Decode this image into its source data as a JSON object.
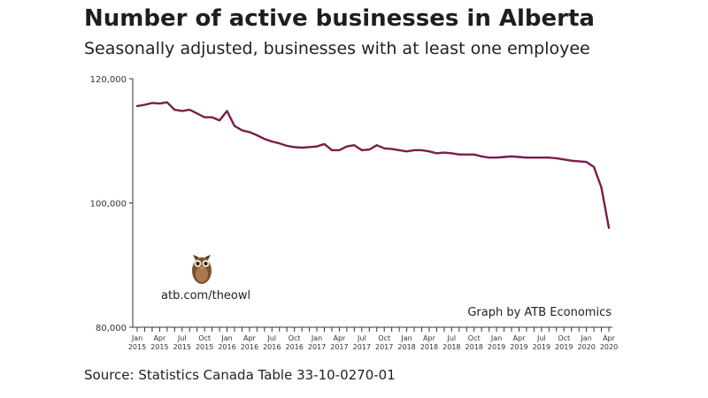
{
  "chart_data": {
    "type": "line",
    "title": "Number of active businesses in Alberta",
    "subtitle": "Seasonally adjusted, businesses with at least one employee",
    "source": "Source: Statistics Canada Table 33-10-0270-01",
    "credit": "Graph by ATB Economics",
    "watermark": "atb.com/theowl",
    "logo_icon": "owl-icon",
    "line_color": "#7a1d4a",
    "ylim": [
      80000,
      120000
    ],
    "yticks": [
      {
        "value": 120000,
        "label": "120,000"
      },
      {
        "value": 100000,
        "label": "100,000"
      },
      {
        "value": 80000,
        "label": "80,000"
      }
    ],
    "xticks": [
      {
        "index": 0,
        "month": "Jan",
        "year": "2015"
      },
      {
        "index": 3,
        "month": "Apr",
        "year": "2015"
      },
      {
        "index": 6,
        "month": "Jul",
        "year": "2015"
      },
      {
        "index": 9,
        "month": "Oct",
        "year": "2015"
      },
      {
        "index": 12,
        "month": "Jan",
        "year": "2016"
      },
      {
        "index": 15,
        "month": "Apr",
        "year": "2016"
      },
      {
        "index": 18,
        "month": "Jul",
        "year": "2016"
      },
      {
        "index": 21,
        "month": "Oct",
        "year": "2016"
      },
      {
        "index": 24,
        "month": "Jan",
        "year": "2017"
      },
      {
        "index": 27,
        "month": "Apr",
        "year": "2017"
      },
      {
        "index": 30,
        "month": "Jul",
        "year": "2017"
      },
      {
        "index": 33,
        "month": "Oct",
        "year": "2017"
      },
      {
        "index": 36,
        "month": "Jan",
        "year": "2018"
      },
      {
        "index": 39,
        "month": "Apr",
        "year": "2018"
      },
      {
        "index": 42,
        "month": "Jul",
        "year": "2018"
      },
      {
        "index": 45,
        "month": "Oct",
        "year": "2018"
      },
      {
        "index": 48,
        "month": "Jan",
        "year": "2019"
      },
      {
        "index": 51,
        "month": "Apr",
        "year": "2019"
      },
      {
        "index": 54,
        "month": "Jul",
        "year": "2019"
      },
      {
        "index": 57,
        "month": "Oct",
        "year": "2019"
      },
      {
        "index": 60,
        "month": "Jan",
        "year": "2020"
      },
      {
        "index": 63,
        "month": "Apr",
        "year": "2020"
      }
    ],
    "series": [
      {
        "values": [
          115600,
          115800,
          116100,
          116000,
          116200,
          115000,
          114800,
          115000,
          114400,
          113800,
          113800,
          113300,
          114800,
          112400,
          111700,
          111400,
          110900,
          110300,
          109900,
          109600,
          109200,
          109000,
          108900,
          109000,
          109100,
          109500,
          108500,
          108500,
          109100,
          109300,
          108500,
          108600,
          109300,
          108800,
          108700,
          108500,
          108300,
          108500,
          108500,
          108300,
          108000,
          108100,
          108000,
          107800,
          107800,
          107800,
          107500,
          107300,
          107300,
          107400,
          107500,
          107400,
          107300,
          107300,
          107300,
          107300,
          107200,
          107000,
          106800,
          106700,
          106600,
          105800,
          102500,
          96000
        ]
      }
    ]
  }
}
